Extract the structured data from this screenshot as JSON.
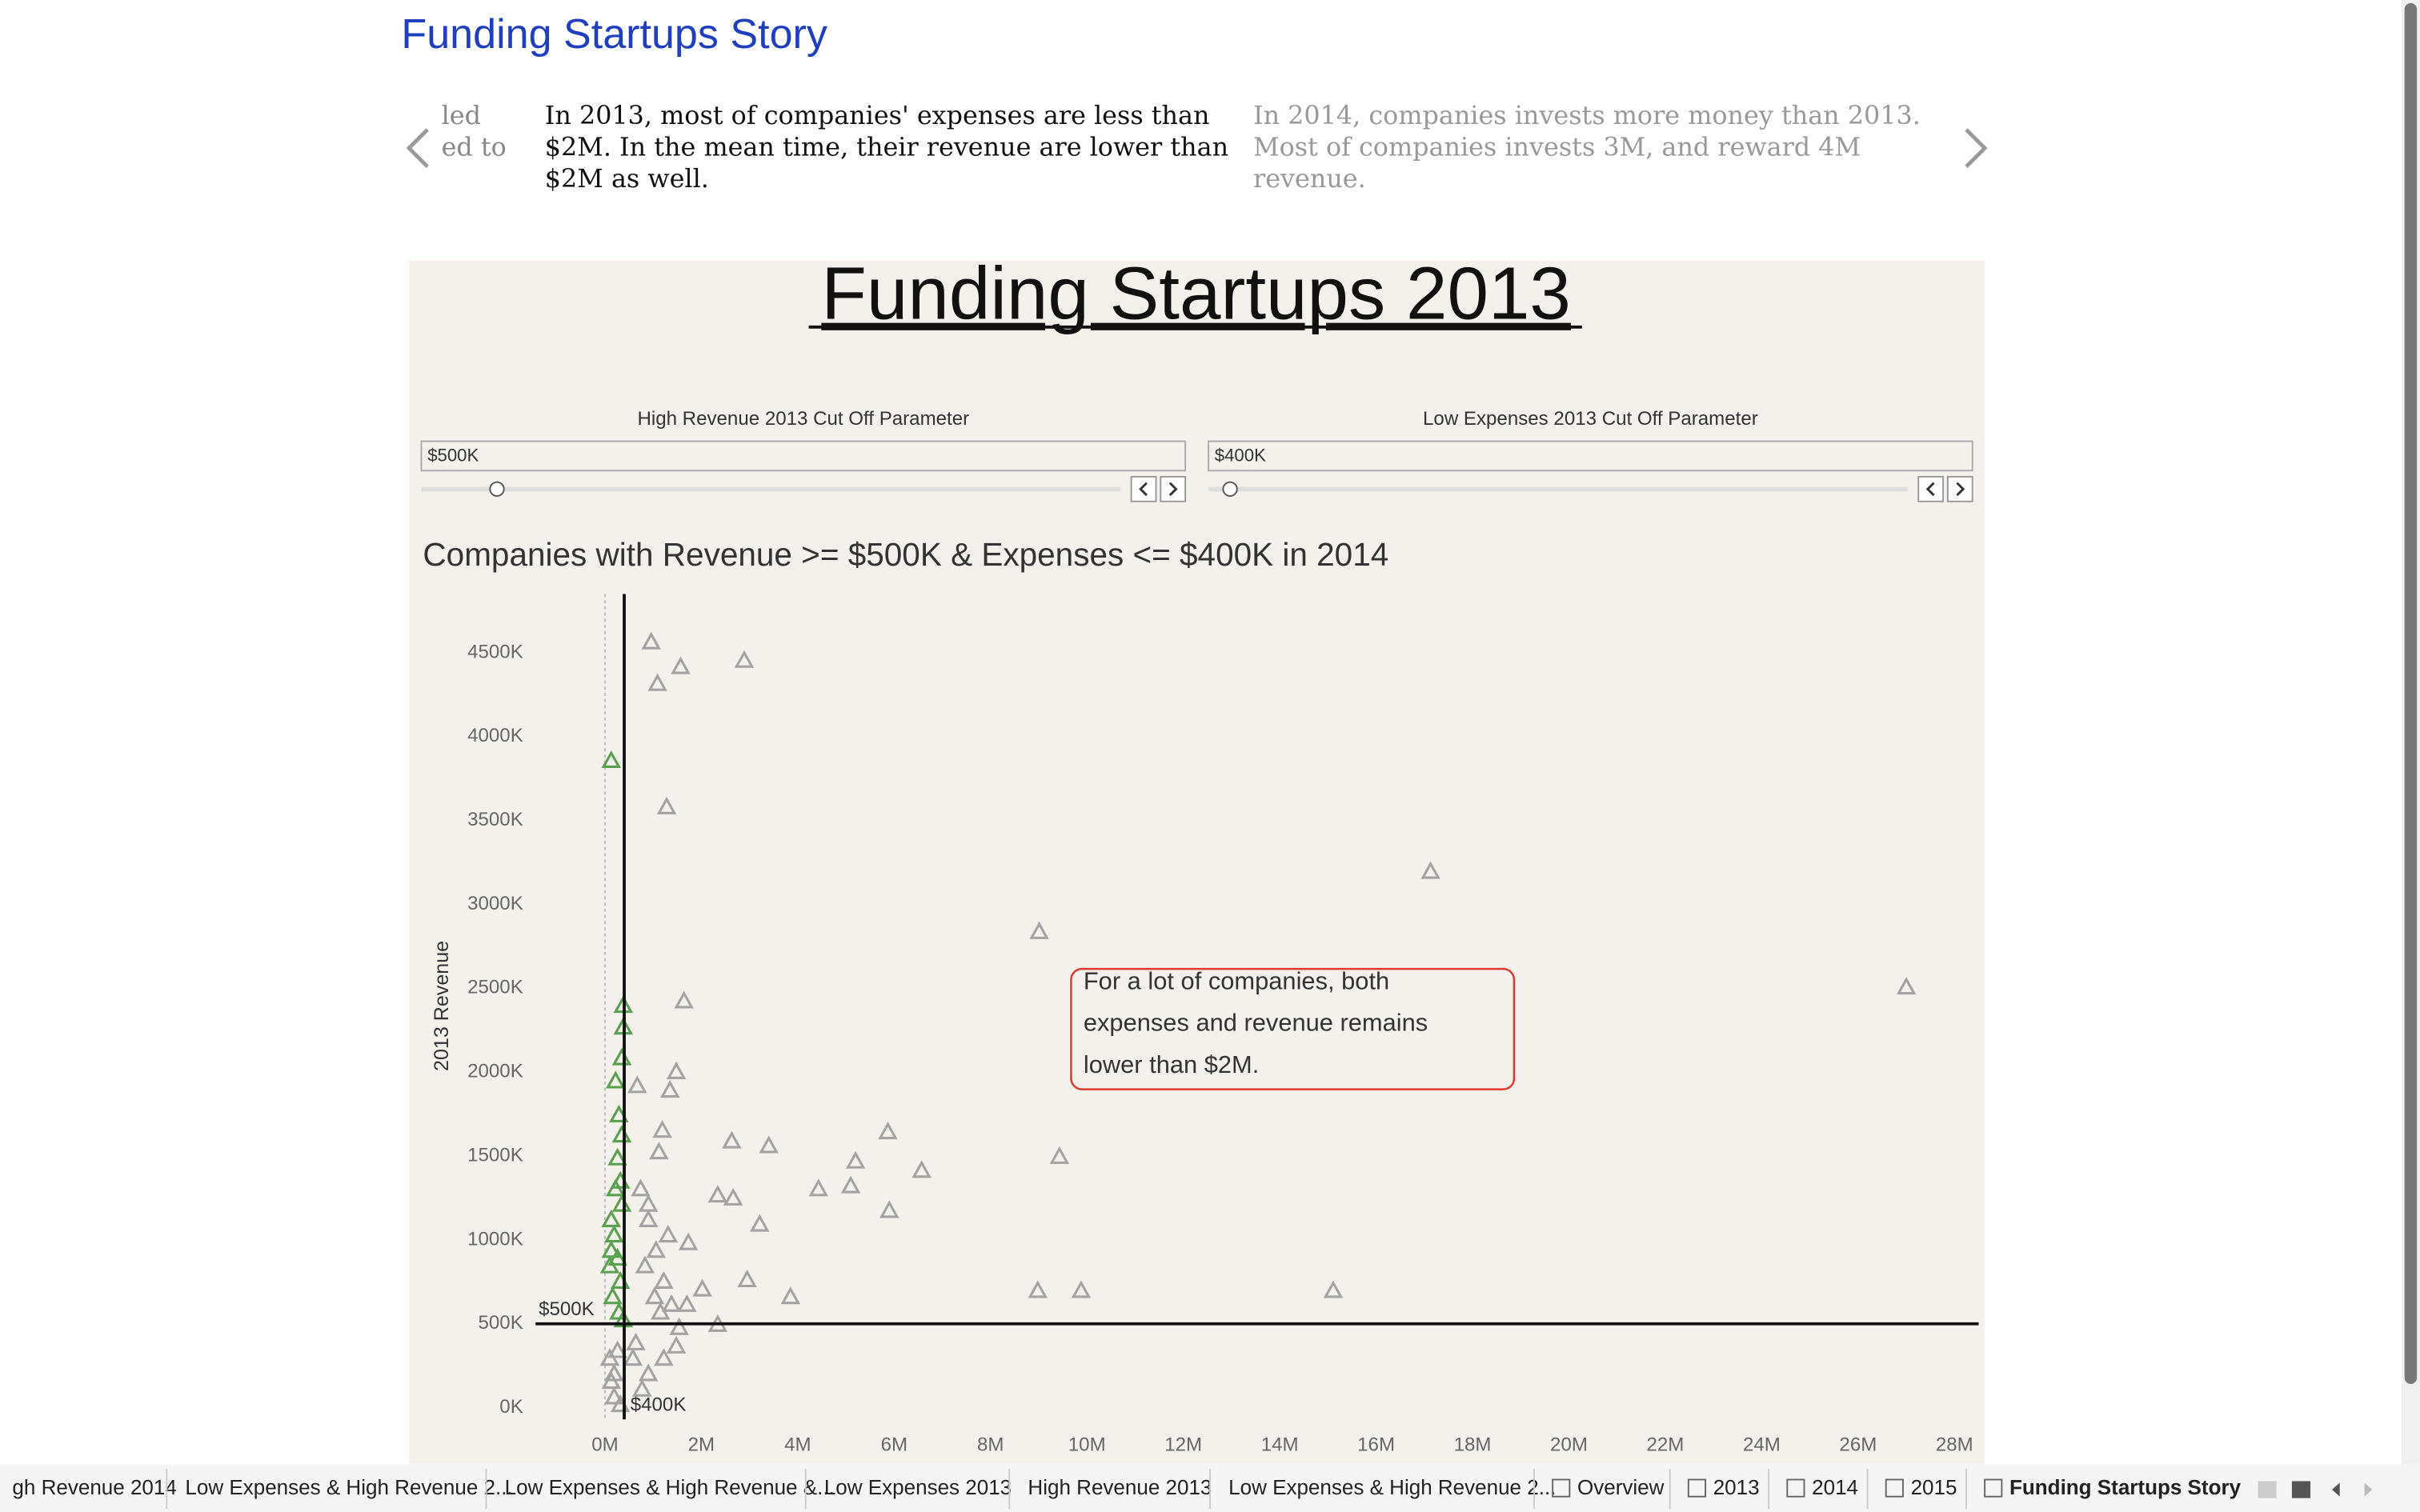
{
  "story": {
    "title": "Funding Startups Story",
    "captions": [
      {
        "lines": [
          "led",
          "ed to"
        ]
      },
      {
        "lines": [
          "In 2013, most of companies' expenses are less than",
          "$2M.  In the mean time, their revenue are lower than",
          "$2M as well."
        ]
      },
      {
        "lines": [
          "In 2014, companies invests more money than 2013.",
          "Most of companies invests 3M, and reward 4M",
          "revenue."
        ]
      }
    ]
  },
  "dashboard": {
    "title": "Funding Startups 2013",
    "parameters": [
      {
        "label": "High Revenue 2013 Cut Off Parameter",
        "value": "$500K"
      },
      {
        "label": "Low Expenses 2013 Cut Off Parameter",
        "value": "$400K"
      }
    ]
  },
  "chart_data": {
    "type": "scatter",
    "title": "Companies with Revenue >= $500K & Expenses <= $400K  in 2014",
    "y_label": "2013 Revenue",
    "xlim": [
      -1.44,
      28.5
    ],
    "ylim": [
      -70,
      4850
    ],
    "xticks": [
      {
        "value": 0,
        "label": "0M"
      },
      {
        "value": 2,
        "label": "2M"
      },
      {
        "value": 4,
        "label": "4M"
      },
      {
        "value": 6,
        "label": "6M"
      },
      {
        "value": 8,
        "label": "8M"
      },
      {
        "value": 10,
        "label": "10M"
      },
      {
        "value": 12,
        "label": "12M"
      },
      {
        "value": 14,
        "label": "14M"
      },
      {
        "value": 16,
        "label": "16M"
      },
      {
        "value": 18,
        "label": "18M"
      },
      {
        "value": 20,
        "label": "20M"
      },
      {
        "value": 22,
        "label": "22M"
      },
      {
        "value": 24,
        "label": "24M"
      },
      {
        "value": 26,
        "label": "26M"
      },
      {
        "value": 28,
        "label": "28M"
      }
    ],
    "yticks": [
      {
        "value": 0,
        "label": "0K"
      },
      {
        "value": 500,
        "label": "500K"
      },
      {
        "value": 1000,
        "label": "1000K"
      },
      {
        "value": 1500,
        "label": "1500K"
      },
      {
        "value": 2000,
        "label": "2000K"
      },
      {
        "value": 2500,
        "label": "2500K"
      },
      {
        "value": 3000,
        "label": "3000K"
      },
      {
        "value": 3500,
        "label": "3500K"
      },
      {
        "value": 4000,
        "label": "4000K"
      },
      {
        "value": 4500,
        "label": "4500K"
      }
    ],
    "reference_x": {
      "value": 0.4,
      "label": "$400K"
    },
    "reference_y": {
      "value": 500,
      "label": "$500K"
    },
    "annotation": [
      "For a lot of companies, both",
      "expenses and revenue remains",
      "lower than $2M."
    ],
    "series": [
      {
        "color": "#a3a3a3",
        "x": [
          0.96,
          2.89,
          1.57,
          1.09,
          1.28,
          17.13,
          9.01,
          27.0,
          1.64,
          1.48,
          1.35,
          0.67,
          5.87,
          2.63,
          3.4,
          1.19,
          1.12,
          9.43,
          5.2,
          6.57,
          4.43,
          5.1,
          2.34,
          2.66,
          5.9,
          3.21,
          1.73,
          2.95,
          2.02,
          3.85,
          8.98,
          9.88,
          15.11,
          2.34,
          1.48,
          1.22,
          0.9,
          0.77,
          0.74,
          0.9,
          1.06,
          1.22,
          1.38,
          0.83,
          1.15,
          1.54,
          0.64,
          0.9,
          1.31,
          1.03,
          1.7,
          0.58,
          0.19,
          0.19,
          0.26,
          0.13,
          0.32,
          0.1
        ],
        "values": [
          4564,
          4454,
          4417,
          4316,
          3581,
          3196,
          2837,
          2507,
          2424,
          2002,
          1892,
          1919,
          1644,
          1589,
          1561,
          1653,
          1524,
          1497,
          1469,
          1414,
          1304,
          1322,
          1267,
          1249,
          1175,
          1093,
          983,
          762,
          707,
          661,
          698,
          698,
          698,
          496,
          367,
          294,
          202,
          110,
          1304,
          1120,
          937,
          753,
          615,
          845,
          569,
          477,
          386,
          1212,
          1029,
          661,
          615,
          294,
          64,
          202,
          340,
          156,
          18,
          294
        ]
      },
      {
        "color": "#59a14f",
        "x": [
          0.13,
          0.38,
          0.38,
          0.35,
          0.22,
          0.29,
          0.35,
          0.26,
          0.32,
          0.13,
          0.19,
          0.26,
          0.32,
          0.16,
          0.29,
          0.38,
          0.1,
          0.35,
          0.22,
          0.13
        ],
        "values": [
          3857,
          2397,
          2268,
          2085,
          1947,
          1745,
          1625,
          1488,
          1350,
          1120,
          1029,
          891,
          753,
          661,
          569,
          523,
          845,
          1212,
          1304,
          937
        ]
      }
    ]
  },
  "tabs": [
    "gh Revenue 2014",
    "Low Expenses & High Revenue 2...",
    "Low Expenses & High Revenue &...",
    "Low Expenses 2013",
    "High Revenue 2013",
    "Low Expenses & High Revenue 2...",
    "Overview",
    "2013",
    "2014",
    "2015",
    "Funding Startups Story"
  ]
}
